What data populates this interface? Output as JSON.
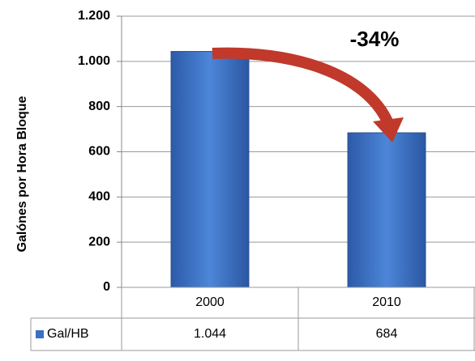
{
  "chart_data": {
    "type": "bar",
    "y_axis_label": "Galónes por Hora Bloque",
    "annotation": "-34%",
    "categories": [
      "2000",
      "2010"
    ],
    "series": [
      {
        "name": "Gal/HB",
        "color": "#3a6fc4",
        "values": [
          1044,
          684
        ],
        "value_labels": [
          "1.044",
          "684"
        ]
      }
    ],
    "ylim": [
      0,
      1200
    ],
    "yticks": [
      0,
      200,
      400,
      600,
      800,
      {
        "value": 1000,
        "label": "1.000"
      },
      {
        "value": 1200,
        "label": "1.200"
      }
    ],
    "grid": true
  }
}
